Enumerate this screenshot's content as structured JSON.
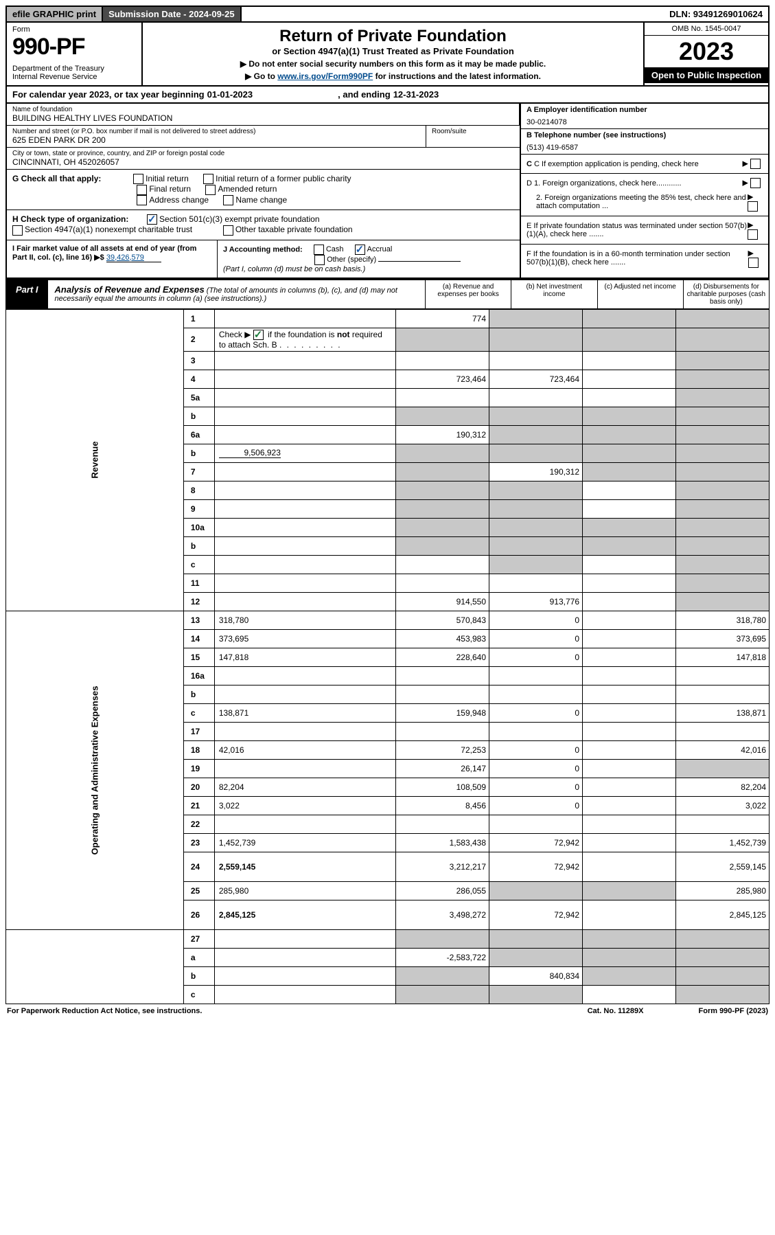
{
  "topbar": {
    "efile": "efile GRAPHIC print",
    "subdate": "Submission Date - 2024-09-25",
    "dln": "DLN: 93491269010624"
  },
  "header": {
    "form_label": "Form",
    "form_num": "990-PF",
    "dept": "Department of the Treasury\nInternal Revenue Service",
    "title": "Return of Private Foundation",
    "subtitle": "or Section 4947(a)(1) Trust Treated as Private Foundation",
    "note1": "▶ Do not enter social security numbers on this form as it may be made public.",
    "note2_pre": "▶ Go to ",
    "note2_link": "www.irs.gov/Form990PF",
    "note2_post": " for instructions and the latest information.",
    "omb": "OMB No. 1545-0047",
    "year": "2023",
    "open": "Open to Public Inspection"
  },
  "cal": {
    "pre": "For calendar year 2023, or tax year beginning ",
    "begin": "01-01-2023",
    "mid": ", and ending ",
    "end": "12-31-2023"
  },
  "info": {
    "name_label": "Name of foundation",
    "name": "BUILDING HEALTHY LIVES FOUNDATION",
    "addr_label": "Number and street (or P.O. box number if mail is not delivered to street address)",
    "addr": "625 EDEN PARK DR 200",
    "room_label": "Room/suite",
    "city_label": "City or town, state or province, country, and ZIP or foreign postal code",
    "city": "CINCINNATI, OH  452026057",
    "a_label": "A Employer identification number",
    "a_val": "30-0214078",
    "b_label": "B Telephone number (see instructions)",
    "b_val": "(513) 419-6587",
    "c_label": "C If exemption application is pending, check here",
    "d1_label": "D 1. Foreign organizations, check here............",
    "d2_label": "2. Foreign organizations meeting the 85% test, check here and attach computation ...",
    "e_label": "E  If private foundation status was terminated under section 507(b)(1)(A), check here .......",
    "f_label": "F  If the foundation is in a 60-month termination under section 507(b)(1)(B), check here .......",
    "g_label": "G Check all that apply:",
    "g_opts": [
      "Initial return",
      "Initial return of a former public charity",
      "Final return",
      "Amended return",
      "Address change",
      "Name change"
    ],
    "h_label": "H Check type of organization:",
    "h_opts": [
      "Section 501(c)(3) exempt private foundation",
      "Section 4947(a)(1) nonexempt charitable trust",
      "Other taxable private foundation"
    ],
    "i_label": "I Fair market value of all assets at end of year (from Part II, col. (c), line 16) ▶$",
    "i_val": "39,426,579",
    "j_label": "J Accounting method:",
    "j_opts": [
      "Cash",
      "Accrual",
      "Other (specify)"
    ],
    "j_note": "(Part I, column (d) must be on cash basis.)"
  },
  "part1": {
    "tab": "Part I",
    "title": "Analysis of Revenue and Expenses",
    "note": "(The total of amounts in columns (b), (c), and (d) may not necessarily equal the amounts in column (a) (see instructions).)",
    "cols": {
      "a": "(a) Revenue and expenses per books",
      "b": "(b) Net investment income",
      "c": "(c) Adjusted net income",
      "d": "(d) Disbursements for charitable purposes (cash basis only)"
    }
  },
  "sections": {
    "revenue": "Revenue",
    "expenses": "Operating and Administrative Expenses"
  },
  "rows": [
    {
      "n": "1",
      "d": "",
      "a": "774",
      "b": "",
      "c": "",
      "grey": [
        "b",
        "c",
        "d"
      ]
    },
    {
      "n": "2",
      "d": "",
      "a": "",
      "b": "",
      "c": "",
      "grey": [
        "a",
        "b",
        "c",
        "d"
      ],
      "checked": true
    },
    {
      "n": "3",
      "d": "",
      "a": "",
      "b": "",
      "c": "",
      "grey": [
        "d"
      ]
    },
    {
      "n": "4",
      "d": "",
      "a": "723,464",
      "b": "723,464",
      "c": "",
      "grey": [
        "d"
      ]
    },
    {
      "n": "5a",
      "d": "",
      "a": "",
      "b": "",
      "c": "",
      "grey": [
        "d"
      ]
    },
    {
      "n": "b",
      "d": "",
      "a": "",
      "b": "",
      "c": "",
      "grey": [
        "a",
        "b",
        "c",
        "d"
      ],
      "inline": true
    },
    {
      "n": "6a",
      "d": "",
      "a": "190,312",
      "b": "",
      "c": "",
      "grey": [
        "b",
        "c",
        "d"
      ]
    },
    {
      "n": "b",
      "d": "",
      "a": "",
      "b": "",
      "c": "",
      "grey": [
        "a",
        "b",
        "c",
        "d"
      ],
      "inline_val": "9,506,923"
    },
    {
      "n": "7",
      "d": "",
      "a": "",
      "b": "190,312",
      "c": "",
      "grey": [
        "a",
        "c",
        "d"
      ]
    },
    {
      "n": "8",
      "d": "",
      "a": "",
      "b": "",
      "c": "",
      "grey": [
        "a",
        "b",
        "d"
      ]
    },
    {
      "n": "9",
      "d": "",
      "a": "",
      "b": "",
      "c": "",
      "grey": [
        "a",
        "b",
        "d"
      ]
    },
    {
      "n": "10a",
      "d": "",
      "a": "",
      "b": "",
      "c": "",
      "grey": [
        "a",
        "b",
        "c",
        "d"
      ],
      "inline": true
    },
    {
      "n": "b",
      "d": "",
      "a": "",
      "b": "",
      "c": "",
      "grey": [
        "a",
        "b",
        "c",
        "d"
      ],
      "inline": true
    },
    {
      "n": "c",
      "d": "",
      "a": "",
      "b": "",
      "c": "",
      "grey": [
        "b",
        "d"
      ]
    },
    {
      "n": "11",
      "d": "",
      "a": "",
      "b": "",
      "c": "",
      "grey": [
        "d"
      ]
    },
    {
      "n": "12",
      "d": "",
      "a": "914,550",
      "b": "913,776",
      "c": "",
      "grey": [
        "d"
      ],
      "bold": true
    }
  ],
  "exp_rows": [
    {
      "n": "13",
      "d": "318,780",
      "a": "570,843",
      "b": "0",
      "c": ""
    },
    {
      "n": "14",
      "d": "373,695",
      "a": "453,983",
      "b": "0",
      "c": ""
    },
    {
      "n": "15",
      "d": "147,818",
      "a": "228,640",
      "b": "0",
      "c": ""
    },
    {
      "n": "16a",
      "d": "",
      "a": "",
      "b": "",
      "c": ""
    },
    {
      "n": "b",
      "d": "",
      "a": "",
      "b": "",
      "c": ""
    },
    {
      "n": "c",
      "d": "138,871",
      "a": "159,948",
      "b": "0",
      "c": ""
    },
    {
      "n": "17",
      "d": "",
      "a": "",
      "b": "",
      "c": ""
    },
    {
      "n": "18",
      "d": "42,016",
      "a": "72,253",
      "b": "0",
      "c": ""
    },
    {
      "n": "19",
      "d": "",
      "a": "26,147",
      "b": "0",
      "c": "",
      "grey": [
        "d"
      ]
    },
    {
      "n": "20",
      "d": "82,204",
      "a": "108,509",
      "b": "0",
      "c": ""
    },
    {
      "n": "21",
      "d": "3,022",
      "a": "8,456",
      "b": "0",
      "c": ""
    },
    {
      "n": "22",
      "d": "",
      "a": "",
      "b": "",
      "c": ""
    },
    {
      "n": "23",
      "d": "1,452,739",
      "a": "1,583,438",
      "b": "72,942",
      "c": ""
    },
    {
      "n": "24",
      "d": "2,559,145",
      "a": "3,212,217",
      "b": "72,942",
      "c": "",
      "bold": true,
      "tall": true
    },
    {
      "n": "25",
      "d": "285,980",
      "a": "286,055",
      "b": "",
      "c": "",
      "grey": [
        "b",
        "c"
      ]
    },
    {
      "n": "26",
      "d": "2,845,125",
      "a": "3,498,272",
      "b": "72,942",
      "c": "",
      "bold": true,
      "tall": true
    }
  ],
  "bottom_rows": [
    {
      "n": "27",
      "d": "",
      "a": "",
      "b": "",
      "c": "",
      "grey": [
        "a",
        "b",
        "c",
        "d"
      ]
    },
    {
      "n": "a",
      "d": "",
      "a": "-2,583,722",
      "b": "",
      "c": "",
      "grey": [
        "b",
        "c",
        "d"
      ],
      "bold": true
    },
    {
      "n": "b",
      "d": "",
      "a": "",
      "b": "840,834",
      "c": "",
      "grey": [
        "a",
        "c",
        "d"
      ],
      "bold": true
    },
    {
      "n": "c",
      "d": "",
      "a": "",
      "b": "",
      "c": "",
      "grey": [
        "a",
        "b",
        "d"
      ],
      "bold": true
    }
  ],
  "footer": {
    "left": "For Paperwork Reduction Act Notice, see instructions.",
    "mid": "Cat. No. 11289X",
    "right": "Form 990-PF (2023)"
  }
}
